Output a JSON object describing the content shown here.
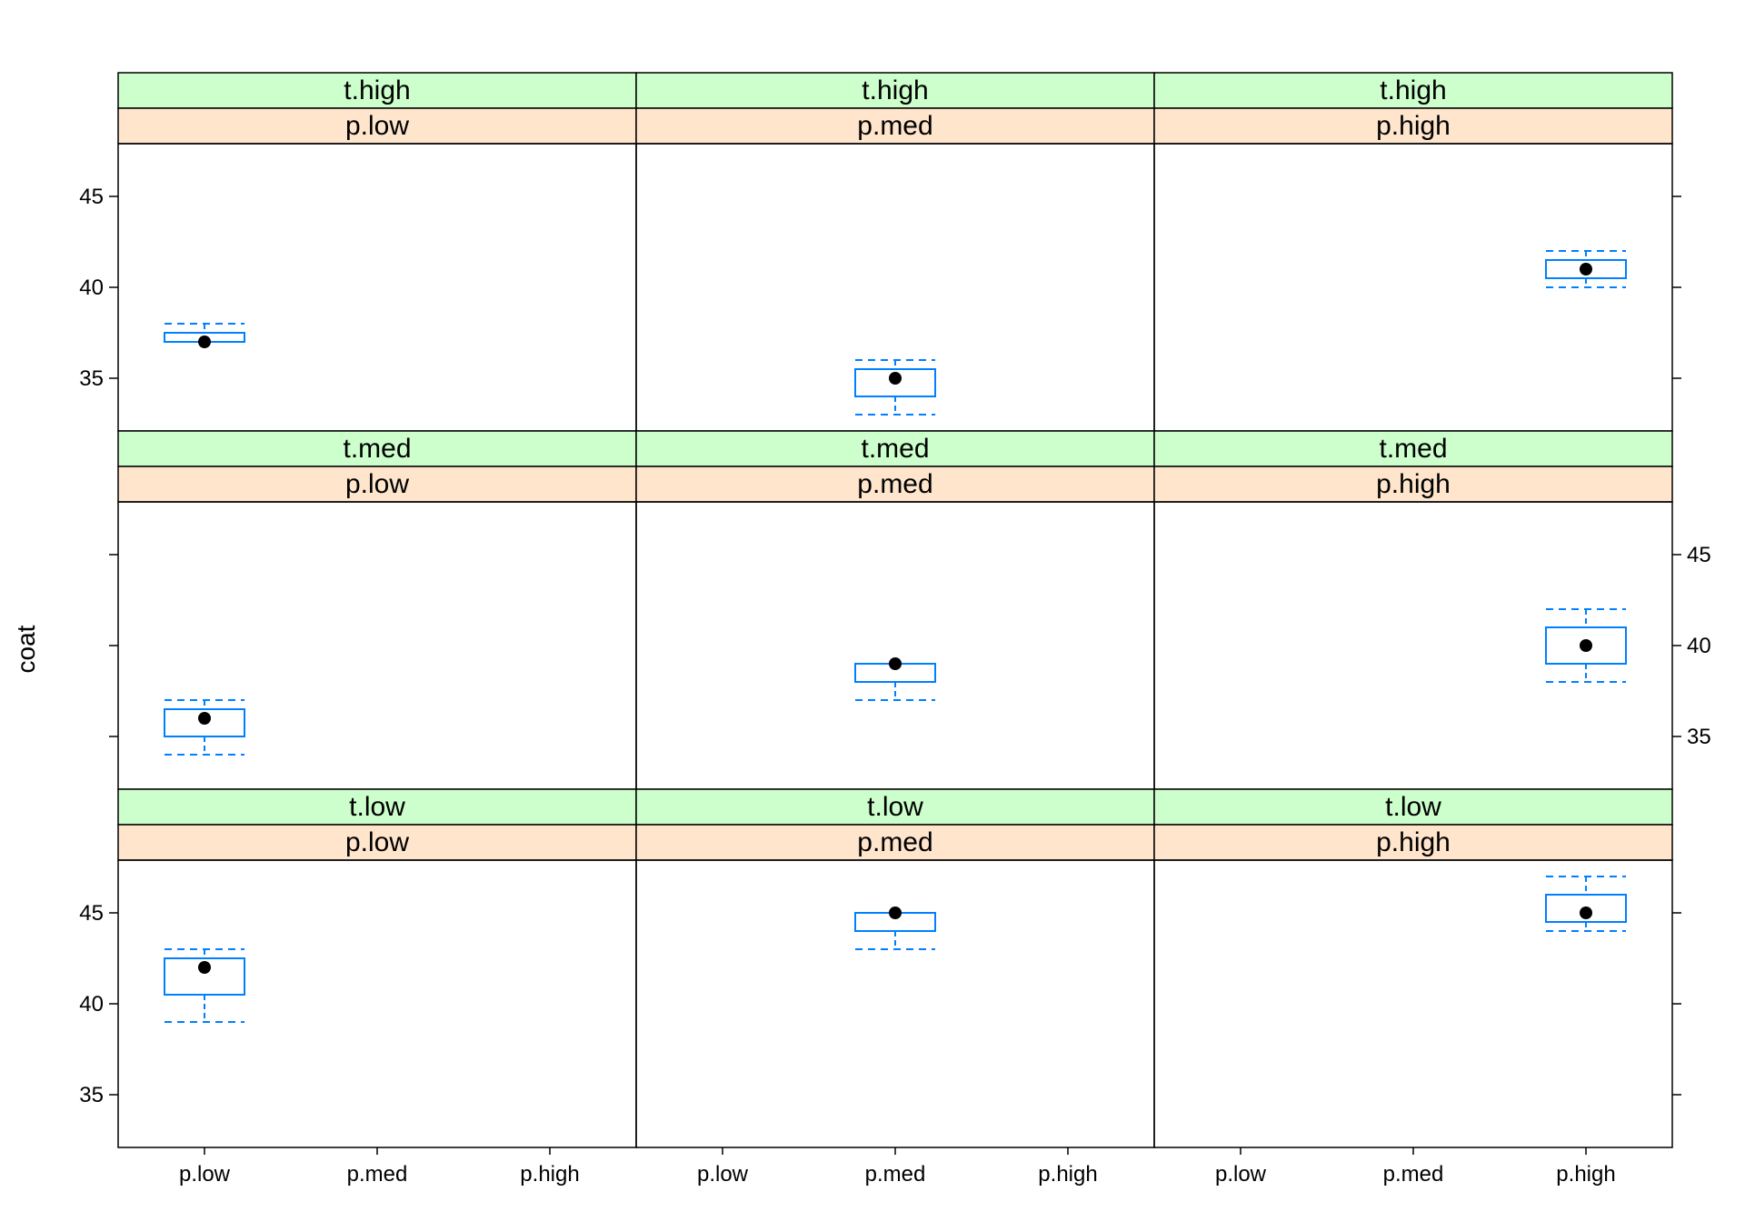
{
  "chart_data": {
    "type": "box",
    "ylabel": "coat",
    "x_tick_labels": [
      "p.low",
      "p.med",
      "p.high"
    ],
    "y_ticks": [
      35,
      40,
      45
    ],
    "ylim": [
      32.1,
      47.9
    ],
    "strip_colors": {
      "outer": "#ccffcc",
      "inner": "#ffe5cc"
    },
    "box_color": "#0080ff",
    "dot_color": "#000000",
    "panels": [
      {
        "strip_outer": "t.high",
        "strip_inner": "p.low",
        "category": "p.low",
        "min": 37,
        "q1": 37,
        "median": 37,
        "q3": 37.5,
        "max": 38
      },
      {
        "strip_outer": "t.high",
        "strip_inner": "p.med",
        "category": "p.med",
        "min": 33,
        "q1": 34,
        "median": 35,
        "q3": 35.5,
        "max": 36
      },
      {
        "strip_outer": "t.high",
        "strip_inner": "p.high",
        "category": "p.high",
        "min": 40,
        "q1": 40.5,
        "median": 41,
        "q3": 41.5,
        "max": 42
      },
      {
        "strip_outer": "t.med",
        "strip_inner": "p.low",
        "category": "p.low",
        "min": 34,
        "q1": 35,
        "median": 36,
        "q3": 36.5,
        "max": 37
      },
      {
        "strip_outer": "t.med",
        "strip_inner": "p.med",
        "category": "p.med",
        "min": 37,
        "q1": 38,
        "median": 39,
        "q3": 39,
        "max": 39
      },
      {
        "strip_outer": "t.med",
        "strip_inner": "p.high",
        "category": "p.high",
        "min": 38,
        "q1": 39,
        "median": 40,
        "q3": 41,
        "max": 42
      },
      {
        "strip_outer": "t.low",
        "strip_inner": "p.low",
        "category": "p.low",
        "min": 39,
        "q1": 40.5,
        "median": 42,
        "q3": 42.5,
        "max": 43
      },
      {
        "strip_outer": "t.low",
        "strip_inner": "p.med",
        "category": "p.med",
        "min": 43,
        "q1": 44,
        "median": 45,
        "q3": 45,
        "max": 45
      },
      {
        "strip_outer": "t.low",
        "strip_inner": "p.high",
        "category": "p.high",
        "min": 44,
        "q1": 44.5,
        "median": 45,
        "q3": 46,
        "max": 47
      }
    ]
  }
}
